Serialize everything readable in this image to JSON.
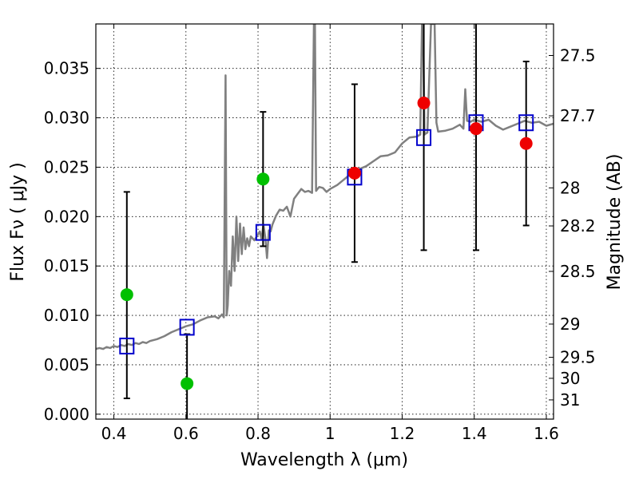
{
  "chart_data": {
    "type": "scatter",
    "xlabel": "Wavelength  λ (μm)",
    "ylabel": "Flux  Fν  ( μJy )",
    "ylabel_right": "Magnitude (AB)",
    "xlim": [
      0.35,
      1.62
    ],
    "ylim": [
      -0.0005,
      0.0395
    ],
    "grid": true,
    "x_ticks": [
      0.4,
      0.6,
      0.8,
      1.0,
      1.2,
      1.4,
      1.6
    ],
    "x_tick_labels": [
      "0.4",
      "0.6",
      "0.8",
      "1",
      "1.2",
      "1.4",
      "1.6"
    ],
    "y_ticks": [
      0.0,
      0.005,
      0.01,
      0.015,
      0.02,
      0.025,
      0.03,
      0.035
    ],
    "y_tick_labels": [
      "0.000",
      "0.005",
      "0.010",
      "0.015",
      "0.020",
      "0.025",
      "0.030",
      "0.035"
    ],
    "right_ticks": [
      {
        "label": "27.5",
        "mag": 27.5
      },
      {
        "label": "27.7",
        "mag": 27.7
      },
      {
        "label": "28",
        "mag": 28.0
      },
      {
        "label": "28.2",
        "mag": 28.2
      },
      {
        "label": "28.5",
        "mag": 28.5
      },
      {
        "label": "29",
        "mag": 29.0
      },
      {
        "label": "29.5",
        "mag": 29.5
      },
      {
        "label": "30",
        "mag": 30.0
      },
      {
        "label": "31",
        "mag": 31.0
      }
    ],
    "colors": {
      "spectrum": "#808080",
      "model_box": "#0000cc",
      "hst_point": "#00c000",
      "ir_point": "#ee0000",
      "errorbar": "#000000",
      "grid": "#000000"
    },
    "series": [
      {
        "kind": "spectrum",
        "x": [
          0.35,
          0.36,
          0.37,
          0.38,
          0.39,
          0.4,
          0.41,
          0.42,
          0.43,
          0.44,
          0.45,
          0.46,
          0.47,
          0.48,
          0.49,
          0.5,
          0.52,
          0.54,
          0.56,
          0.58,
          0.6,
          0.62,
          0.64,
          0.66,
          0.68,
          0.69,
          0.7,
          0.705,
          0.71,
          0.713,
          0.716,
          0.72,
          0.725,
          0.73,
          0.735,
          0.74,
          0.745,
          0.75,
          0.755,
          0.76,
          0.765,
          0.77,
          0.775,
          0.78,
          0.79,
          0.8,
          0.805,
          0.81,
          0.815,
          0.82,
          0.825,
          0.83,
          0.835,
          0.84,
          0.85,
          0.86,
          0.87,
          0.88,
          0.89,
          0.9,
          0.91,
          0.92,
          0.93,
          0.94,
          0.95,
          0.955,
          0.958,
          0.961,
          0.965,
          0.97,
          0.98,
          0.99,
          1.0,
          1.02,
          1.04,
          1.06,
          1.08,
          1.1,
          1.12,
          1.14,
          1.16,
          1.18,
          1.2,
          1.22,
          1.24,
          1.25,
          1.255,
          1.258,
          1.262,
          1.265,
          1.27,
          1.28,
          1.285,
          1.29,
          1.295,
          1.3,
          1.32,
          1.34,
          1.36,
          1.37,
          1.375,
          1.38,
          1.39,
          1.4,
          1.42,
          1.44,
          1.46,
          1.48,
          1.5,
          1.52,
          1.54,
          1.56,
          1.58,
          1.6,
          1.62
        ],
        "y": [
          0.0066,
          0.0067,
          0.0066,
          0.0068,
          0.0067,
          0.0069,
          0.0068,
          0.007,
          0.0069,
          0.0071,
          0.007,
          0.0072,
          0.0071,
          0.0073,
          0.0072,
          0.0074,
          0.0076,
          0.0079,
          0.0083,
          0.0086,
          0.0089,
          0.0091,
          0.0095,
          0.0098,
          0.0099,
          0.0097,
          0.0101,
          0.0098,
          0.0343,
          0.01,
          0.011,
          0.0145,
          0.013,
          0.018,
          0.0145,
          0.02,
          0.0155,
          0.0193,
          0.0162,
          0.0189,
          0.0167,
          0.0178,
          0.017,
          0.018,
          0.0176,
          0.0182,
          0.0185,
          0.0177,
          0.0192,
          0.0179,
          0.0158,
          0.0186,
          0.0185,
          0.0192,
          0.0201,
          0.0207,
          0.0206,
          0.021,
          0.02,
          0.0218,
          0.0223,
          0.0228,
          0.0225,
          0.0226,
          0.0224,
          0.0395,
          0.0395,
          0.0226,
          0.0228,
          0.023,
          0.0229,
          0.0225,
          0.0228,
          0.0232,
          0.0238,
          0.0244,
          0.0248,
          0.0251,
          0.0256,
          0.0261,
          0.0262,
          0.0265,
          0.0274,
          0.028,
          0.0281,
          0.0283,
          0.0395,
          0.0395,
          0.0283,
          0.0284,
          0.0285,
          0.0395,
          0.0395,
          0.0395,
          0.0295,
          0.0286,
          0.0287,
          0.0289,
          0.0293,
          0.0289,
          0.0329,
          0.0297,
          0.0296,
          0.0298,
          0.0296,
          0.0298,
          0.0292,
          0.0288,
          0.0291,
          0.0294,
          0.0297,
          0.0295,
          0.0296,
          0.0292,
          0.0294
        ]
      },
      {
        "kind": "model_box",
        "x": [
          0.436,
          0.603,
          0.814,
          1.068,
          1.26,
          1.405,
          1.544
        ],
        "y": [
          0.0069,
          0.0088,
          0.0184,
          0.024,
          0.028,
          0.0295,
          0.0295
        ]
      },
      {
        "kind": "hst_point",
        "x": [
          0.436,
          0.603,
          0.814
        ],
        "y": [
          0.0121,
          0.0031,
          0.0238
        ]
      },
      {
        "kind": "ir_point",
        "x": [
          1.068,
          1.26,
          1.405,
          1.544
        ],
        "y": [
          0.0244,
          0.0315,
          0.0289,
          0.0274
        ]
      },
      {
        "kind": "errorbar",
        "x": [
          0.436,
          0.603,
          0.814,
          1.068,
          1.26,
          1.405,
          1.544
        ],
        "y_low": [
          0.0016,
          -0.0005,
          0.017,
          0.0154,
          0.0166,
          0.0166,
          0.0191
        ],
        "y_high": [
          0.0225,
          0.0081,
          0.0306,
          0.0334,
          0.0395,
          0.0395,
          0.0357
        ],
        "cap_bottom": [
          true,
          false,
          true,
          true,
          true,
          true,
          true
        ],
        "cap_top": [
          true,
          true,
          true,
          true,
          false,
          false,
          true
        ]
      }
    ]
  }
}
